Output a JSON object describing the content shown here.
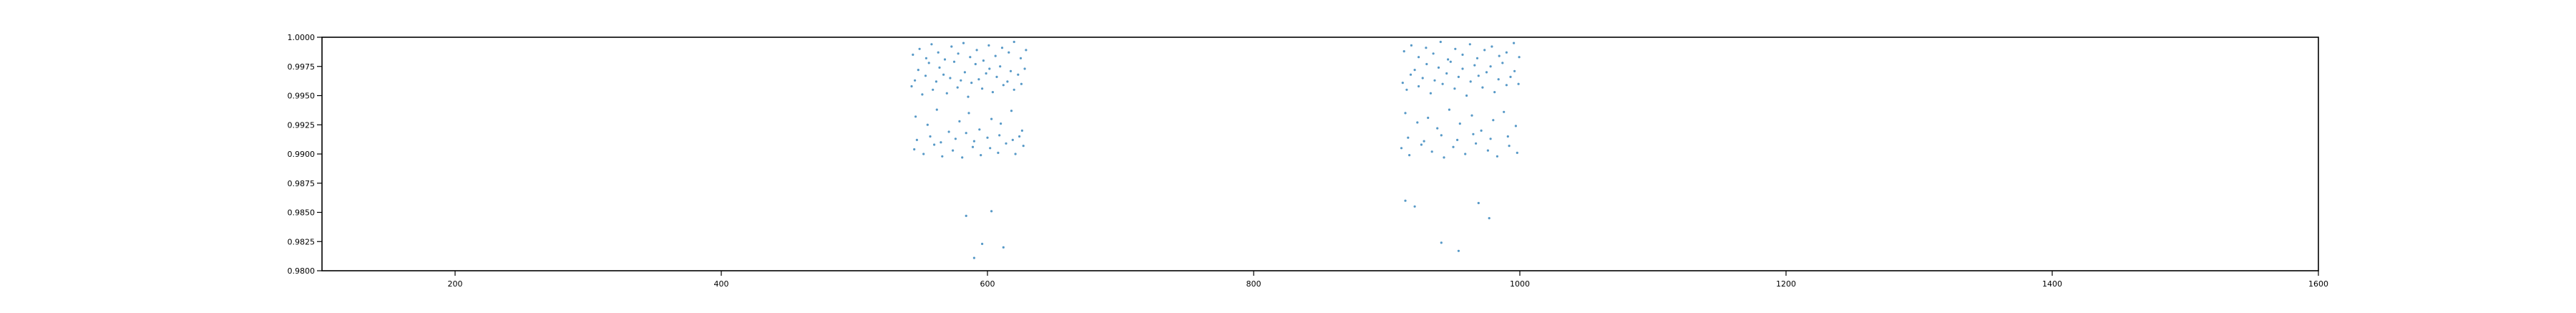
{
  "chart_data": {
    "type": "scatter",
    "title": "",
    "xlabel": "",
    "ylabel": "",
    "xlim": [
      100,
      1600
    ],
    "ylim": [
      0.98,
      1.0
    ],
    "xticks": [
      200,
      400,
      600,
      800,
      1000,
      1200,
      1400,
      1600
    ],
    "xtick_labels": [
      "200",
      "400",
      "600",
      "800",
      "1000",
      "1200",
      "1400",
      "1600"
    ],
    "yticks": [
      0.98,
      0.9825,
      0.985,
      0.9875,
      0.99,
      0.9925,
      0.995,
      0.9975,
      1.0
    ],
    "ytick_labels": [
      "0.9800",
      "0.9825",
      "0.9850",
      "0.9875",
      "0.9900",
      "0.9925",
      "0.9950",
      "0.9975",
      "1.0000"
    ],
    "grid": false,
    "legend": "none",
    "marker_color": "#1f77b4",
    "series": [
      {
        "x": [
          543.0,
          545.5,
          548.0,
          551.0,
          553.5,
          556.0,
          559.0,
          561.5,
          564.0,
          567.0,
          569.5,
          572.0,
          575.0,
          577.5,
          580.0,
          583.0,
          585.5,
          588.0,
          591.0,
          593.5,
          596.0,
          599.0,
          601.5,
          604.0,
          607.0,
          609.5,
          612.0,
          615.0,
          617.5,
          620.0,
          623.0,
          625.5,
          628.0
        ],
        "y": [
          0.9958,
          0.9963,
          0.9972,
          0.9951,
          0.9967,
          0.9978,
          0.9955,
          0.9962,
          0.9974,
          0.9968,
          0.9952,
          0.9965,
          0.9979,
          0.9957,
          0.9963,
          0.997,
          0.9949,
          0.9961,
          0.9977,
          0.9964,
          0.9956,
          0.9969,
          0.9973,
          0.9953,
          0.9966,
          0.9975,
          0.9959,
          0.9962,
          0.9971,
          0.9955,
          0.9968,
          0.996,
          0.9973
        ]
      },
      {
        "x": [
          544.0,
          549.0,
          554.0,
          558.0,
          563.0,
          568.0,
          573.0,
          578.0,
          582.0,
          587.0,
          592.0,
          597.0,
          601.0,
          606.0,
          611.0,
          616.0,
          620.0,
          625.0,
          629.0
        ],
        "y": [
          0.9985,
          0.999,
          0.9982,
          0.9994,
          0.9987,
          0.9981,
          0.9992,
          0.9986,
          0.9995,
          0.9983,
          0.9989,
          0.998,
          0.9993,
          0.9984,
          0.9991,
          0.9987,
          0.9996,
          0.9982,
          0.9989
        ]
      },
      {
        "x": [
          546.0,
          555.0,
          562.0,
          571.0,
          579.0,
          586.0,
          594.0,
          603.0,
          610.0,
          618.0,
          626.0
        ],
        "y": [
          0.9932,
          0.9925,
          0.9938,
          0.9919,
          0.9928,
          0.9935,
          0.9921,
          0.993,
          0.9926,
          0.9937,
          0.992
        ]
      },
      {
        "x": [
          545.0,
          552.0,
          560.0,
          566.0,
          574.0,
          581.0,
          589.0,
          595.0,
          602.0,
          608.0,
          614.0,
          621.0,
          627.0
        ],
        "y": [
          0.9904,
          0.99,
          0.9908,
          0.9898,
          0.9903,
          0.9897,
          0.9906,
          0.9899,
          0.9905,
          0.9901,
          0.9909,
          0.99,
          0.9907
        ]
      },
      {
        "x": [
          547.0,
          557.0,
          565.0,
          576.0,
          584.0,
          590.0,
          600.0,
          609.0,
          619.0,
          624.0
        ],
        "y": [
          0.9912,
          0.9915,
          0.991,
          0.9913,
          0.9918,
          0.9911,
          0.9914,
          0.9916,
          0.9912,
          0.9915
        ]
      },
      {
        "x": [
          584.0,
          590.0,
          596.0,
          603.0,
          612.0
        ],
        "y": [
          0.9847,
          0.9811,
          0.9823,
          0.9851,
          0.982
        ]
      },
      {
        "x": [
          912.0,
          915.0,
          918.0,
          921.0,
          924.0,
          927.0,
          930.0,
          933.0,
          936.0,
          939.0,
          942.0,
          945.0,
          948.0,
          951.0,
          954.0,
          957.0,
          960.0,
          963.0,
          966.0,
          969.0,
          972.0,
          975.0,
          978.0,
          981.0,
          984.0,
          987.0,
          990.0,
          993.0,
          996.0,
          999.0
        ],
        "y": [
          0.9961,
          0.9955,
          0.9968,
          0.9972,
          0.9958,
          0.9965,
          0.9977,
          0.9952,
          0.9963,
          0.9974,
          0.996,
          0.9969,
          0.9979,
          0.9956,
          0.9966,
          0.9973,
          0.995,
          0.9962,
          0.9976,
          0.9967,
          0.9957,
          0.997,
          0.9975,
          0.9953,
          0.9964,
          0.9978,
          0.9959,
          0.9966,
          0.9971,
          0.996
        ]
      },
      {
        "x": [
          913.0,
          918.5,
          924.0,
          929.5,
          935.0,
          940.5,
          946.0,
          951.5,
          957.0,
          962.5,
          968.0,
          973.5,
          979.0,
          984.5,
          990.0,
          995.5,
          999.5
        ],
        "y": [
          0.9988,
          0.9993,
          0.9983,
          0.9991,
          0.9986,
          0.9996,
          0.9981,
          0.999,
          0.9985,
          0.9994,
          0.9982,
          0.9989,
          0.9992,
          0.9984,
          0.9987,
          0.9995,
          0.9983
        ]
      },
      {
        "x": [
          914.0,
          923.0,
          931.0,
          938.0,
          947.0,
          955.0,
          964.0,
          971.0,
          980.0,
          988.0,
          997.0
        ],
        "y": [
          0.9935,
          0.9927,
          0.9931,
          0.9922,
          0.9938,
          0.9926,
          0.9933,
          0.992,
          0.9929,
          0.9936,
          0.9924
        ]
      },
      {
        "x": [
          911.0,
          917.0,
          926.0,
          934.0,
          943.0,
          950.0,
          959.0,
          967.0,
          976.0,
          983.0,
          992.0,
          998.0
        ],
        "y": [
          0.9905,
          0.9899,
          0.9908,
          0.9902,
          0.9897,
          0.9906,
          0.99,
          0.9909,
          0.9903,
          0.9898,
          0.9907,
          0.9901
        ]
      },
      {
        "x": [
          916.0,
          928.0,
          941.0,
          953.0,
          965.0,
          978.0,
          991.0
        ],
        "y": [
          0.9914,
          0.9911,
          0.9916,
          0.9912,
          0.9917,
          0.9913,
          0.9915
        ]
      },
      {
        "x": [
          914.0,
          921.0,
          941.0,
          954.0,
          969.0,
          977.0
        ],
        "y": [
          0.986,
          0.9855,
          0.9824,
          0.9817,
          0.9858,
          0.9845
        ]
      }
    ]
  }
}
